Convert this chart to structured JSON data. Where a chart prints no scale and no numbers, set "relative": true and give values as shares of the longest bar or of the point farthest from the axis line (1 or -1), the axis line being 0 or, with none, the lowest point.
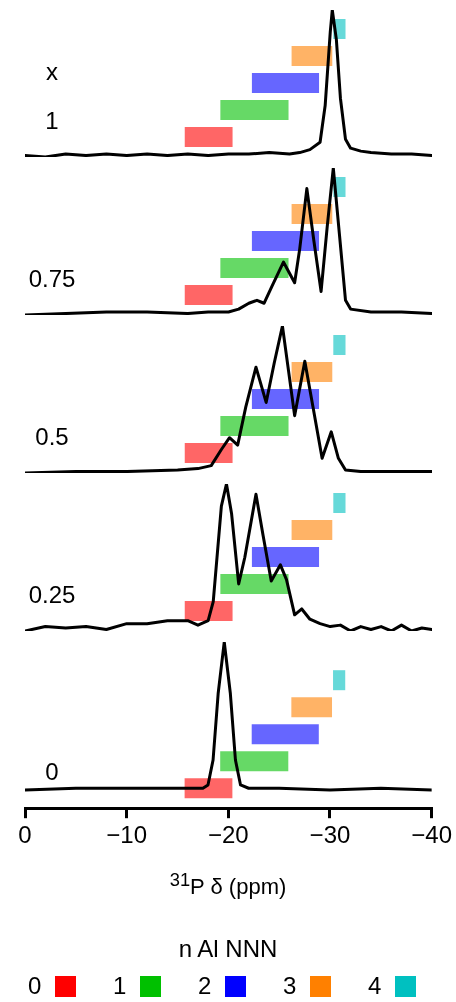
{
  "chart_data": [
    {
      "type": "line",
      "relative": true,
      "xlim": [
        0,
        -40
      ],
      "tick_labels": false,
      "annotations": [
        "x",
        "1"
      ],
      "x": [
        0,
        -2,
        -4,
        -6,
        -8,
        -10,
        -12,
        -14,
        -16,
        -18,
        -20,
        -22,
        -24,
        -26,
        -27,
        -28,
        -29,
        -29.5,
        -30,
        -30.2,
        -30.6,
        -31,
        -31.5,
        -32,
        -33,
        -34,
        -36,
        -38,
        -40
      ],
      "series": [
        {
          "color": "#000000",
          "values": [
            0.01,
            0.0,
            0.02,
            0.01,
            0.02,
            0.01,
            0.02,
            0.01,
            0.02,
            0.01,
            0.02,
            0.02,
            0.03,
            0.02,
            0.03,
            0.05,
            0.1,
            0.35,
            0.85,
            1,
            0.8,
            0.4,
            0.12,
            0.06,
            0.04,
            0.03,
            0.02,
            0.02,
            0.01
          ]
        }
      ],
      "bands": [
        {
          "axis": "x",
          "from": -15.7,
          "to": -20.4,
          "color": "#ff0000"
        },
        {
          "axis": "x",
          "from": -19.2,
          "to": -25.9,
          "color": "#00c000"
        },
        {
          "axis": "x",
          "from": -22.3,
          "to": -28.9,
          "color": "#0000ff"
        },
        {
          "axis": "x",
          "from": -26.2,
          "to": -30.2,
          "color": "#ff8000"
        },
        {
          "axis": "x",
          "from": -30.3,
          "to": -31.5,
          "color": "#00c0c0"
        }
      ]
    },
    {
      "type": "line",
      "relative": true,
      "xlim": [
        0,
        -40
      ],
      "tick_labels": false,
      "annotations": [
        "0.75"
      ],
      "x": [
        0,
        -4,
        -8,
        -12,
        -16,
        -18,
        -20,
        -21,
        -22,
        -22.8,
        -23.5,
        -24.3,
        -25.4,
        -26.5,
        -27,
        -27.7,
        -28.4,
        -29.1,
        -29.7,
        -30.3,
        -30.9,
        -31.5,
        -32,
        -34,
        -37,
        -40
      ],
      "series": [
        {
          "color": "#000000",
          "values": [
            0.0,
            0.01,
            0.02,
            0.02,
            0.01,
            0.02,
            0.02,
            0.04,
            0.08,
            0.1,
            0.08,
            0.2,
            0.36,
            0.22,
            0.45,
            0.86,
            0.5,
            0.16,
            0.6,
            1,
            0.55,
            0.1,
            0.04,
            0.02,
            0.02,
            0.01
          ]
        }
      ],
      "bands": [
        {
          "axis": "x",
          "from": -15.7,
          "to": -20.4,
          "color": "#ff0000"
        },
        {
          "axis": "x",
          "from": -19.2,
          "to": -25.9,
          "color": "#00c000"
        },
        {
          "axis": "x",
          "from": -22.3,
          "to": -28.9,
          "color": "#0000ff"
        },
        {
          "axis": "x",
          "from": -26.2,
          "to": -30.2,
          "color": "#ff8000"
        },
        {
          "axis": "x",
          "from": -30.3,
          "to": -31.5,
          "color": "#00c0c0"
        }
      ]
    },
    {
      "type": "line",
      "relative": true,
      "xlim": [
        0,
        -40
      ],
      "tick_labels": false,
      "annotations": [
        "0.5"
      ],
      "x": [
        0,
        -5,
        -10,
        -15,
        -17,
        -18.3,
        -19.3,
        -20.1,
        -20.9,
        -21.7,
        -22.7,
        -23.7,
        -24.5,
        -25.3,
        -26.5,
        -27.5,
        -28.3,
        -29.2,
        -30.1,
        -30.8,
        -31.5,
        -33,
        -36,
        -40
      ],
      "series": [
        {
          "color": "#000000",
          "values": [
            0,
            0.01,
            0.01,
            0.02,
            0.03,
            0.05,
            0.16,
            0.24,
            0.19,
            0.45,
            0.72,
            0.48,
            0.75,
            1,
            0.39,
            0.76,
            0.45,
            0.1,
            0.28,
            0.1,
            0.02,
            0.01,
            0.01,
            0.01
          ]
        }
      ],
      "bands": [
        {
          "axis": "x",
          "from": -15.7,
          "to": -20.4,
          "color": "#ff0000"
        },
        {
          "axis": "x",
          "from": -19.2,
          "to": -25.9,
          "color": "#00c000"
        },
        {
          "axis": "x",
          "from": -22.3,
          "to": -28.9,
          "color": "#0000ff"
        },
        {
          "axis": "x",
          "from": -26.2,
          "to": -30.2,
          "color": "#ff8000"
        },
        {
          "axis": "x",
          "from": -30.3,
          "to": -31.5,
          "color": "#00c0c0"
        }
      ]
    },
    {
      "type": "line",
      "relative": true,
      "xlim": [
        0,
        -40
      ],
      "tick_labels": false,
      "annotations": [
        "0.25"
      ],
      "x": [
        0,
        -2,
        -4,
        -6,
        -8,
        -10,
        -12,
        -14,
        -16,
        -17,
        -18,
        -18.5,
        -19.3,
        -19.8,
        -20.3,
        -21,
        -21.6,
        -22.7,
        -23.4,
        -24.2,
        -25.1,
        -25.7,
        -26.5,
        -27.2,
        -28,
        -29,
        -30,
        -31,
        -32,
        -33,
        -34,
        -35,
        -36,
        -37,
        -38,
        -39,
        -40
      ],
      "series": [
        {
          "color": "#000000",
          "values": [
            0.0,
            0.03,
            0.02,
            0.03,
            0.01,
            0.05,
            0.05,
            0.07,
            0.07,
            0.04,
            0.07,
            0.2,
            0.85,
            1,
            0.8,
            0.32,
            0.5,
            0.93,
            0.65,
            0.34,
            0.45,
            0.35,
            0.11,
            0.15,
            0.08,
            0.05,
            0.03,
            0.04,
            0.0,
            0.03,
            0.01,
            0.03,
            0.0,
            0.04,
            0.0,
            0.02,
            0.01
          ]
        }
      ],
      "bands": [
        {
          "axis": "x",
          "from": -15.7,
          "to": -20.4,
          "color": "#ff0000"
        },
        {
          "axis": "x",
          "from": -19.2,
          "to": -25.9,
          "color": "#00c000"
        },
        {
          "axis": "x",
          "from": -22.3,
          "to": -28.9,
          "color": "#0000ff"
        },
        {
          "axis": "x",
          "from": -26.2,
          "to": -30.2,
          "color": "#ff8000"
        },
        {
          "axis": "x",
          "from": -30.3,
          "to": -31.5,
          "color": "#00c0c0"
        }
      ]
    },
    {
      "type": "line",
      "relative": true,
      "annotations": [
        "0"
      ],
      "xlim": [
        0,
        -40
      ],
      "xlabel": "$^{31}$P δ (ppm)",
      "legend": "bottom",
      "legend_title": "n Al NNN",
      "xticks": [
        0,
        {
          "value": -10,
          "label": "−10"
        },
        {
          "value": -20,
          "label": "−20"
        },
        {
          "value": -30,
          "label": "−30"
        },
        {
          "value": -40,
          "label": "−40"
        }
      ],
      "x": [
        0,
        -5,
        -10,
        -15,
        -17.5,
        -18,
        -18.5,
        -19,
        -19.6,
        -20.2,
        -20.7,
        -21.2,
        -22,
        -25,
        -30,
        -35,
        -40
      ],
      "series": [
        {
          "color": "#000000",
          "values": [
            0.11,
            0.12,
            0.12,
            0.12,
            0.12,
            0.14,
            0.29,
            0.69,
            1,
            0.69,
            0.29,
            0.14,
            0.12,
            0.12,
            0.11,
            0.12,
            0.11
          ]
        }
      ],
      "bands": [
        {
          "axis": "x",
          "from": -15.7,
          "to": -20.4,
          "color": "#ff0000",
          "label": "0"
        },
        {
          "axis": "x",
          "from": -19.2,
          "to": -25.9,
          "color": "#00c000",
          "label": "1"
        },
        {
          "axis": "x",
          "from": -22.3,
          "to": -28.9,
          "color": "#0000ff",
          "label": "2"
        },
        {
          "axis": "x",
          "from": -26.2,
          "to": -30.2,
          "color": "#ff8000",
          "label": "3"
        },
        {
          "axis": "x",
          "from": -30.3,
          "to": -31.5,
          "color": "#00c0c0",
          "label": "4"
        }
      ]
    }
  ]
}
